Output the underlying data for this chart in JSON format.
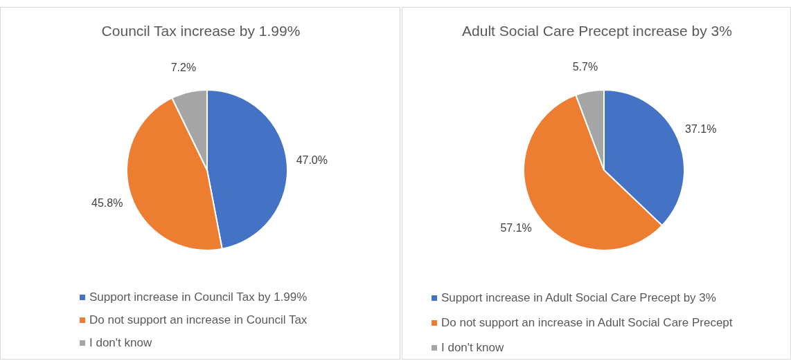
{
  "chart_data": [
    {
      "type": "pie",
      "title": "Council Tax increase by 1.99%",
      "categories": [
        "Support increase in Council Tax by 1.99%",
        "Do not support an increase in Council Tax",
        "I don't know"
      ],
      "values": [
        47.0,
        45.8,
        7.2
      ],
      "value_labels": [
        "47.0%",
        "45.8%",
        "7.2%"
      ],
      "colors": [
        "#4472c4",
        "#ed7d31",
        "#a5a5a5"
      ],
      "legend": "bottom"
    },
    {
      "type": "pie",
      "title": "Adult Social Care Precept increase by 3%",
      "categories": [
        "Support increase in Adult Social Care Precept by 3%",
        "Do not support an increase in Adult Social Care Precept",
        "I don't know"
      ],
      "values": [
        37.1,
        57.1,
        5.7
      ],
      "value_labels": [
        "37.1%",
        "57.1%",
        "5.7%"
      ],
      "colors": [
        "#4472c4",
        "#ed7d31",
        "#a5a5a5"
      ],
      "legend": "bottom"
    }
  ]
}
